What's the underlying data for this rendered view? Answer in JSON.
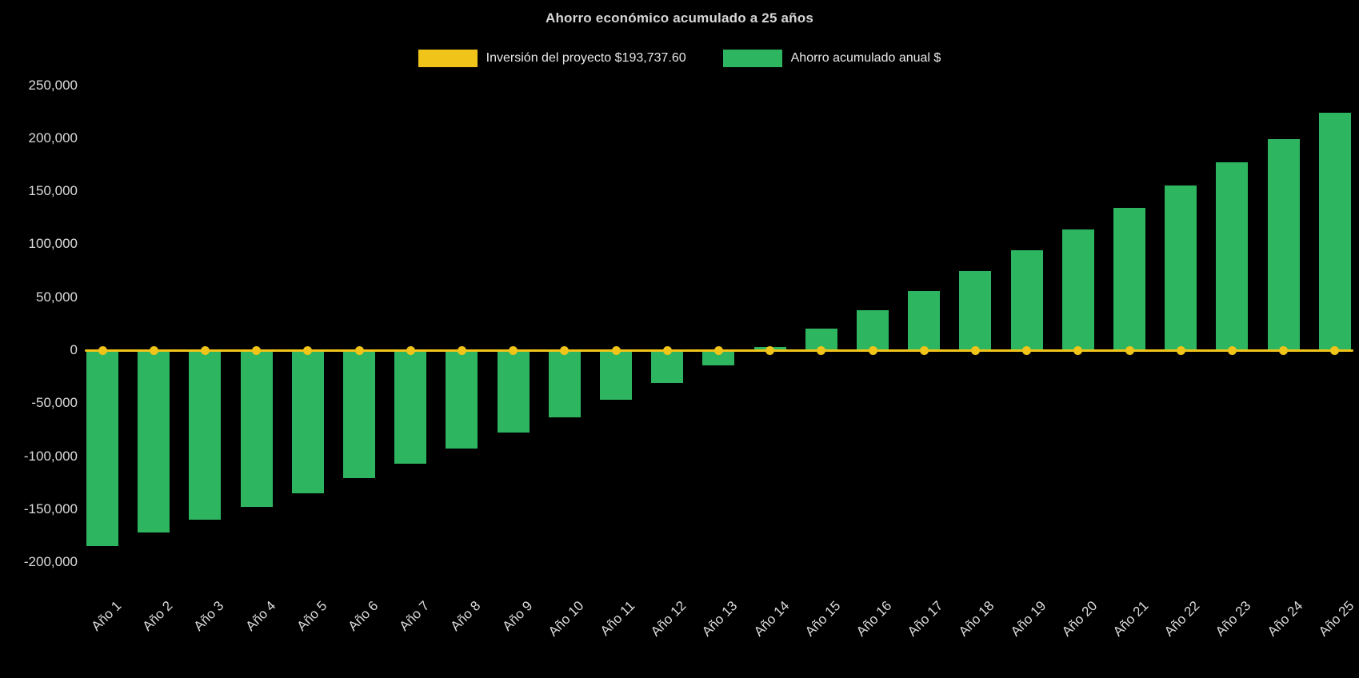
{
  "chart_data": {
    "type": "bar",
    "title": "Ahorro económico acumulado a 25 años",
    "categories": [
      "Año 1",
      "Año 2",
      "Año 3",
      "Año 4",
      "Año 5",
      "Año 6",
      "Año 7",
      "Año 8",
      "Año 9",
      "Año 10",
      "Año 11",
      "Año 12",
      "Año 13",
      "Año 14",
      "Año 15",
      "Año 16",
      "Año 17",
      "Año 18",
      "Año 19",
      "Año 20",
      "Año 21",
      "Año 22",
      "Año 23",
      "Año 24",
      "Año 25"
    ],
    "series": [
      {
        "name": "Inversión del proyecto $193,737.60",
        "type": "line",
        "color": "#F0C419",
        "values": [
          0,
          0,
          0,
          0,
          0,
          0,
          0,
          0,
          0,
          0,
          0,
          0,
          0,
          0,
          0,
          0,
          0,
          0,
          0,
          0,
          0,
          0,
          0,
          0,
          0
        ]
      },
      {
        "name": "Ahorro acumulado anual $",
        "type": "bar",
        "color": "#2DB55F",
        "values": [
          -185000,
          -172000,
          -160000,
          -148000,
          -135000,
          -121000,
          -107000,
          -93000,
          -78000,
          -63000,
          -47000,
          -31000,
          -14000,
          3000,
          20000,
          38000,
          56000,
          75000,
          94000,
          114000,
          134000,
          155000,
          177000,
          199000,
          224000
        ]
      }
    ],
    "ylim": [
      -200000,
      250000
    ],
    "yticks": [
      250000,
      200000,
      150000,
      100000,
      50000,
      0,
      -50000,
      -100000,
      -150000,
      -200000
    ],
    "ytick_labels": [
      "250,000",
      "200,000",
      "150,000",
      "100,000",
      "50,000",
      "0",
      "-50,000",
      "-100,000",
      "-150,000",
      "-200,000"
    ],
    "xlabel": "",
    "ylabel": "",
    "grid": false,
    "legend_position": "top",
    "background": "#000000",
    "text_color": "#dcdcdc"
  }
}
